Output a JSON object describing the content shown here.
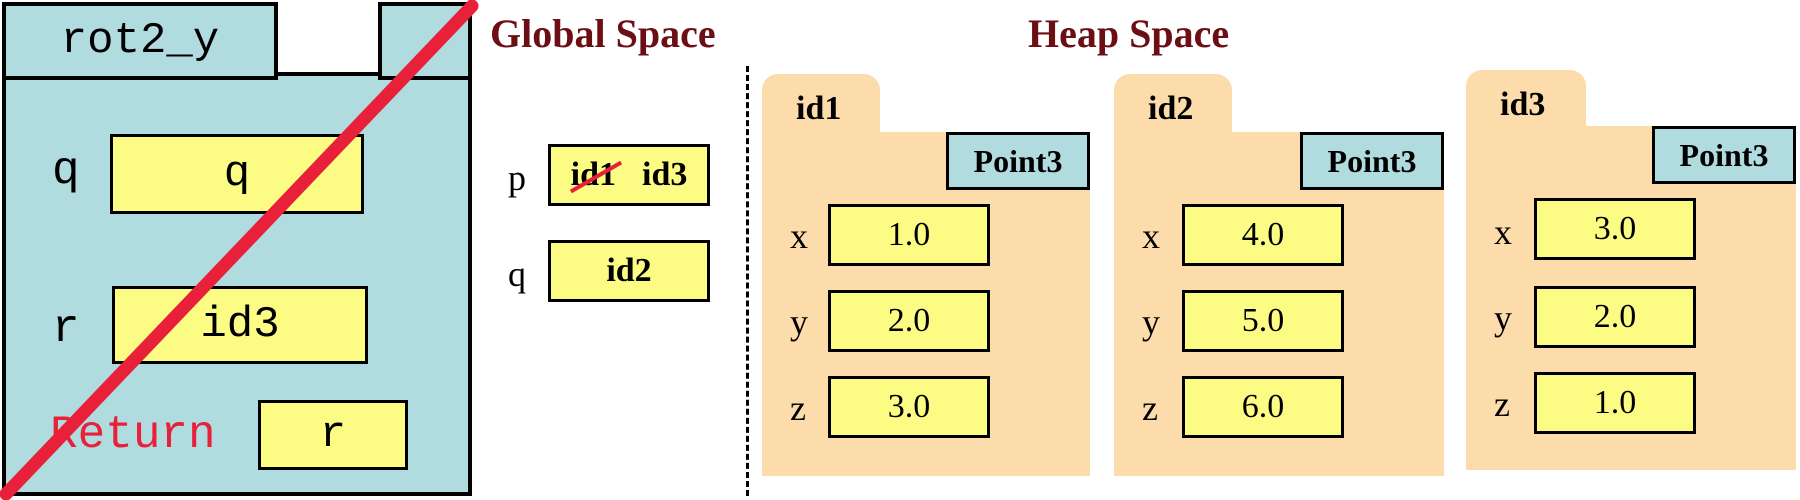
{
  "frame": {
    "name": "rot2_y",
    "vars": [
      {
        "name": "q",
        "value": "q"
      },
      {
        "name": "r",
        "value": "id3"
      }
    ],
    "return_label": "Return",
    "return_value": "r"
  },
  "headings": {
    "global": "Global Space",
    "heap": "Heap Space"
  },
  "globals": {
    "p": {
      "name": "p",
      "old_value": "id1",
      "value": "id3"
    },
    "q": {
      "name": "q",
      "value": "id2"
    }
  },
  "heap": [
    {
      "id": "id1",
      "class": "Point3",
      "fields": [
        {
          "name": "x",
          "value": "1.0"
        },
        {
          "name": "y",
          "value": "2.0"
        },
        {
          "name": "z",
          "value": "3.0"
        }
      ]
    },
    {
      "id": "id2",
      "class": "Point3",
      "fields": [
        {
          "name": "x",
          "value": "4.0"
        },
        {
          "name": "y",
          "value": "5.0"
        },
        {
          "name": "z",
          "value": "6.0"
        }
      ]
    },
    {
      "id": "id3",
      "class": "Point3",
      "fields": [
        {
          "name": "x",
          "value": "3.0"
        },
        {
          "name": "y",
          "value": "2.0"
        },
        {
          "name": "z",
          "value": "1.0"
        }
      ]
    }
  ],
  "colors": {
    "frame": "#b0dce0",
    "box": "#fcfc84",
    "heap_object": "#fcdcaa",
    "heading": "#6b0f15",
    "cross": "#e8203a"
  }
}
